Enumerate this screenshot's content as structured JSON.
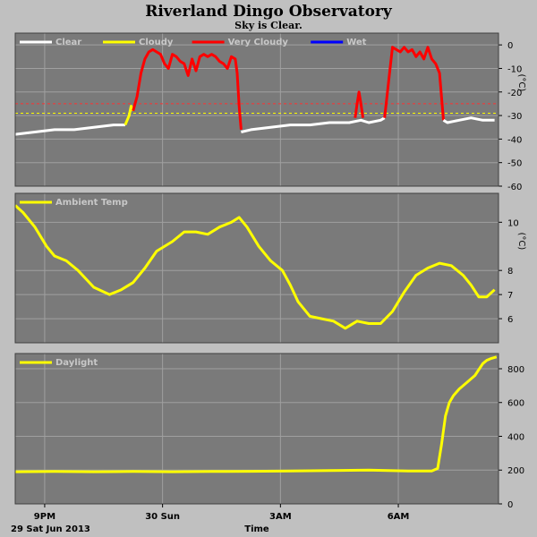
{
  "title": "Riverland Dingo Observatory",
  "subtitle": "Sky is Clear.",
  "date_label": "29 Sat Jun 2013",
  "x_axis_title": "Time",
  "x_ticks": [
    {
      "t": 0.75,
      "label": "9PM"
    },
    {
      "t": 3.75,
      "label": "30 Sun"
    },
    {
      "t": 6.75,
      "label": "3AM"
    },
    {
      "t": 9.75,
      "label": "6AM"
    }
  ],
  "colors": {
    "plot_bg": "#7a7a7a",
    "page_bg": "#c0c0c0",
    "grid": "#a0a0a0",
    "clear": "#ffffff",
    "cloudy": "#ffff00",
    "very_cloudy": "#ff0000",
    "wet": "#0000ff",
    "threshold_red": "#ff3030",
    "threshold_yellow": "#ffff00",
    "ambient": "#ffff00",
    "daylight": "#ffff00"
  },
  "chart_data": [
    {
      "type": "line",
      "name": "sky",
      "legend": [
        {
          "name": "Clear",
          "color": "#ffffff"
        },
        {
          "name": "Cloudy",
          "color": "#ffff00"
        },
        {
          "name": "Very Cloudy",
          "color": "#ff0000"
        },
        {
          "name": "Wet",
          "color": "#0000ff"
        }
      ],
      "ylabel": "(°C)",
      "ylim": [
        -60,
        5
      ],
      "yticks": [
        0,
        -10,
        -20,
        -30,
        -40,
        -50,
        -60
      ],
      "xlim": [
        0,
        12.3
      ],
      "thresholds": [
        {
          "value": -25,
          "color": "#ff3030"
        },
        {
          "value": -29,
          "color": "#ffff00"
        }
      ],
      "segments": [
        {
          "state": "Clear",
          "x": [
            0.0,
            0.5,
            1.0,
            1.5,
            2.0,
            2.5,
            2.8
          ],
          "y": [
            -38,
            -37,
            -36,
            -36,
            -35,
            -34,
            -34
          ]
        },
        {
          "state": "Cloudy",
          "x": [
            2.8,
            2.9,
            2.95,
            3.0
          ],
          "y": [
            -34,
            -30,
            -26,
            -28
          ]
        },
        {
          "state": "Very Cloudy",
          "x": [
            3.0,
            3.1,
            3.2,
            3.3,
            3.4,
            3.5,
            3.6,
            3.7,
            3.8,
            3.9,
            4.0,
            4.1,
            4.2,
            4.3,
            4.4,
            4.5,
            4.6,
            4.7,
            4.8,
            4.9,
            5.0,
            5.1,
            5.2,
            5.3,
            5.4,
            5.5,
            5.6,
            5.65,
            5.7,
            5.75
          ],
          "y": [
            -28,
            -22,
            -12,
            -6,
            -3,
            -2,
            -3,
            -4,
            -8,
            -10,
            -4,
            -5,
            -7,
            -8,
            -13,
            -6,
            -11,
            -5,
            -4,
            -5,
            -4,
            -5,
            -7,
            -8,
            -10,
            -5,
            -6,
            -12,
            -26,
            -36
          ]
        },
        {
          "state": "Clear",
          "x": [
            5.75,
            6.0,
            6.5,
            7.0,
            7.5,
            8.0,
            8.5,
            8.8,
            9.0,
            9.3,
            9.4
          ],
          "y": [
            -37,
            -36,
            -35,
            -34,
            -34,
            -33,
            -33,
            -32,
            -33,
            -32,
            -31
          ]
        },
        {
          "state": "Very Cloudy",
          "x": [
            8.65,
            8.7,
            8.75,
            8.8,
            8.85
          ],
          "y": [
            -31,
            -25,
            -20,
            -25,
            -31
          ]
        },
        {
          "state": "Very Cloudy",
          "x": [
            9.4,
            9.5,
            9.6,
            9.7,
            9.8,
            9.9,
            10.0,
            10.1,
            10.2,
            10.3,
            10.4,
            10.5,
            10.6,
            10.7,
            10.8,
            10.85,
            10.9
          ],
          "y": [
            -31,
            -16,
            -1,
            -2,
            -3,
            -1,
            -3,
            -2,
            -5,
            -3,
            -6,
            -1,
            -6,
            -8,
            -12,
            -22,
            -32
          ]
        },
        {
          "state": "Clear",
          "x": [
            10.9,
            11.0,
            11.3,
            11.6,
            11.9,
            12.2
          ],
          "y": [
            -32,
            -33,
            -32,
            -31,
            -32,
            -32
          ]
        }
      ]
    },
    {
      "type": "line",
      "name": "ambient",
      "legend": [
        {
          "name": "Ambient Temp",
          "color": "#ffff00"
        }
      ],
      "ylabel": "(°C)",
      "ylim": [
        5.0,
        11.2
      ],
      "yticks": [
        6,
        7,
        8,
        10
      ],
      "xlim": [
        0,
        12.3
      ],
      "series": [
        {
          "name": "Ambient Temp",
          "x": [
            0.0,
            0.2,
            0.5,
            0.8,
            1.0,
            1.3,
            1.6,
            2.0,
            2.4,
            2.7,
            3.0,
            3.3,
            3.6,
            4.0,
            4.3,
            4.6,
            4.9,
            5.2,
            5.5,
            5.7,
            5.9,
            6.2,
            6.5,
            6.8,
            7.0,
            7.2,
            7.5,
            7.8,
            8.1,
            8.4,
            8.7,
            9.0,
            9.3,
            9.6,
            9.9,
            10.2,
            10.5,
            10.8,
            11.1,
            11.4,
            11.6,
            11.8,
            12.0,
            12.2
          ],
          "y": [
            10.7,
            10.4,
            9.8,
            9.0,
            8.6,
            8.4,
            8.0,
            7.3,
            7.0,
            7.2,
            7.5,
            8.1,
            8.8,
            9.2,
            9.6,
            9.6,
            9.5,
            9.8,
            10.0,
            10.2,
            9.8,
            9.0,
            8.4,
            8.0,
            7.4,
            6.7,
            6.1,
            6.0,
            5.9,
            5.6,
            5.9,
            5.8,
            5.8,
            6.3,
            7.1,
            7.8,
            8.1,
            8.3,
            8.2,
            7.8,
            7.4,
            6.9,
            6.9,
            7.2
          ]
        }
      ]
    },
    {
      "type": "line",
      "name": "daylight",
      "legend": [
        {
          "name": "Daylight",
          "color": "#ffff00"
        }
      ],
      "ylabel": "",
      "ylim": [
        0,
        890
      ],
      "yticks": [
        0,
        200,
        400,
        600,
        800
      ],
      "xlim": [
        0,
        12.3
      ],
      "series": [
        {
          "name": "Daylight",
          "x": [
            0.0,
            1.0,
            2.0,
            3.0,
            4.0,
            5.0,
            6.0,
            7.0,
            8.0,
            9.0,
            10.0,
            10.6,
            10.75,
            10.85,
            10.95,
            11.05,
            11.15,
            11.3,
            11.5,
            11.7,
            11.9,
            12.0,
            12.1,
            12.25
          ],
          "y": [
            190,
            192,
            190,
            192,
            190,
            192,
            193,
            195,
            197,
            200,
            195,
            195,
            210,
            350,
            520,
            600,
            640,
            680,
            720,
            760,
            830,
            850,
            860,
            870
          ]
        }
      ]
    }
  ]
}
